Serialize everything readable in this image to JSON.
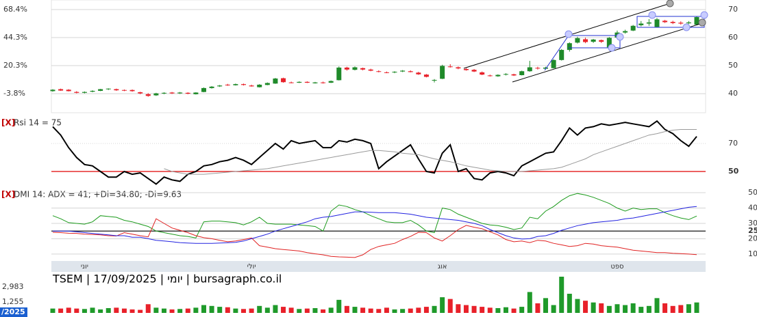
{
  "chart_data": [
    {
      "type": "candlestick",
      "categories": [
        null,
        null,
        null,
        null,
        "יוני",
        null,
        null,
        null,
        null,
        null,
        null,
        null,
        null,
        null,
        null,
        null,
        null,
        null,
        null,
        null,
        null,
        null,
        null,
        null,
        null,
        "יולי",
        null,
        null,
        null,
        null,
        null,
        null,
        null,
        null,
        null,
        null,
        null,
        null,
        null,
        null,
        null,
        null,
        null,
        null,
        null,
        null,
        null,
        null,
        null,
        "אוג",
        null,
        null,
        null,
        null,
        null,
        null,
        null,
        null,
        null,
        null,
        null,
        null,
        null,
        null,
        null,
        null,
        null,
        null,
        null,
        null,
        null,
        "ספט",
        null,
        null,
        null,
        null,
        null,
        null,
        null,
        null,
        null,
        null
      ],
      "candles": [
        [
          40.9,
          41.6,
          40.7,
          41.4
        ],
        [
          41.6,
          41.8,
          41.0,
          41.1
        ],
        [
          41.4,
          41.6,
          40.8,
          40.9
        ],
        [
          40.6,
          40.9,
          40.1,
          40.3
        ],
        [
          40.3,
          40.8,
          40.1,
          40.6
        ],
        [
          40.7,
          41.2,
          40.5,
          41.0
        ],
        [
          41.0,
          41.7,
          40.9,
          41.6
        ],
        [
          41.6,
          41.9,
          41.3,
          41.8
        ],
        [
          41.6,
          41.8,
          41.0,
          41.2
        ],
        [
          41.3,
          41.5,
          40.9,
          41.1
        ],
        [
          41.3,
          41.5,
          40.7,
          40.9
        ],
        [
          40.5,
          40.7,
          39.8,
          40.1
        ],
        [
          39.8,
          40.2,
          38.9,
          39.2
        ],
        [
          39.4,
          40.3,
          39.2,
          40.1
        ],
        [
          40.1,
          40.5,
          39.8,
          40.3
        ],
        [
          40.4,
          40.6,
          39.9,
          40.1
        ],
        [
          40.1,
          40.6,
          39.9,
          40.4
        ],
        [
          40.3,
          40.5,
          39.8,
          40.0
        ],
        [
          39.8,
          40.5,
          39.7,
          40.4
        ],
        [
          40.6,
          42.2,
          40.5,
          42.0
        ],
        [
          42.0,
          42.7,
          41.8,
          42.5
        ],
        [
          42.6,
          43.1,
          42.4,
          42.9
        ],
        [
          43.2,
          43.5,
          42.8,
          43.0
        ],
        [
          43.0,
          43.6,
          42.9,
          43.4
        ],
        [
          43.4,
          43.6,
          42.9,
          43.1
        ],
        [
          42.9,
          43.2,
          42.5,
          42.6
        ],
        [
          42.3,
          43.4,
          42.2,
          43.2
        ],
        [
          43.1,
          44.0,
          43.0,
          43.8
        ],
        [
          43.6,
          45.6,
          43.5,
          45.4
        ],
        [
          45.5,
          45.7,
          43.9,
          44.1
        ],
        [
          44.0,
          44.3,
          43.7,
          43.9
        ],
        [
          43.9,
          44.4,
          43.8,
          44.2
        ],
        [
          44.2,
          44.4,
          43.8,
          43.9
        ],
        [
          43.7,
          44.2,
          43.6,
          44.0
        ],
        [
          44.0,
          44.3,
          43.6,
          43.8
        ],
        [
          43.9,
          44.7,
          43.8,
          44.5
        ],
        [
          44.8,
          49.7,
          44.7,
          49.3
        ],
        [
          49.3,
          49.6,
          48.2,
          48.6
        ],
        [
          48.5,
          49.7,
          48.3,
          49.4
        ],
        [
          49.1,
          49.3,
          48.3,
          48.6
        ],
        [
          48.6,
          48.9,
          48.0,
          48.2
        ],
        [
          48.0,
          48.3,
          47.6,
          47.8
        ],
        [
          47.6,
          47.9,
          47.3,
          47.5
        ],
        [
          47.7,
          48.0,
          47.3,
          47.8
        ],
        [
          47.9,
          48.4,
          47.7,
          48.2
        ],
        [
          48.0,
          48.3,
          47.6,
          47.7
        ],
        [
          47.5,
          47.8,
          46.7,
          46.9
        ],
        [
          46.8,
          47.0,
          45.8,
          46.0
        ],
        [
          44.8,
          45.2,
          44.0,
          44.9
        ],
        [
          45.3,
          50.3,
          45.2,
          49.9
        ],
        [
          49.7,
          50.5,
          49.3,
          49.5
        ],
        [
          49.4,
          49.7,
          48.7,
          49.0
        ],
        [
          48.8,
          49.1,
          48.2,
          48.4
        ],
        [
          48.5,
          48.8,
          47.7,
          47.9
        ],
        [
          47.6,
          47.9,
          46.6,
          46.8
        ],
        [
          46.5,
          46.8,
          46.1,
          46.3
        ],
        [
          46.2,
          46.9,
          46.0,
          46.7
        ],
        [
          46.8,
          47.3,
          46.5,
          47.0
        ],
        [
          46.9,
          47.1,
          46.3,
          46.5
        ],
        [
          46.6,
          48.2,
          46.5,
          48.0
        ],
        [
          48.0,
          51.7,
          47.8,
          49.4
        ],
        [
          49.2,
          49.6,
          48.6,
          49.0
        ],
        [
          48.9,
          49.6,
          48.6,
          49.3
        ],
        [
          49.1,
          52.3,
          49.0,
          52.0
        ],
        [
          52.0,
          55.9,
          51.8,
          55.6
        ],
        [
          55.6,
          58.3,
          55.0,
          58.0
        ],
        [
          58.2,
          60.3,
          57.9,
          59.8
        ],
        [
          59.4,
          60.0,
          58.0,
          58.4
        ],
        [
          58.5,
          59.5,
          58.1,
          59.3
        ],
        [
          59.1,
          59.3,
          58.1,
          58.5
        ],
        [
          56.5,
          60.2,
          56.3,
          59.9
        ],
        [
          60.0,
          62.5,
          59.8,
          61.8
        ],
        [
          61.8,
          62.8,
          61.4,
          62.3
        ],
        [
          62.5,
          64.5,
          62.3,
          64.2
        ],
        [
          64.4,
          65.9,
          64.0,
          65.0
        ],
        [
          65.0,
          66.6,
          64.2,
          65.4
        ],
        [
          63.8,
          67.0,
          63.6,
          66.5
        ],
        [
          66.0,
          66.3,
          65.2,
          65.5
        ],
        [
          65.6,
          66.0,
          64.8,
          65.2
        ],
        [
          65.3,
          65.8,
          64.6,
          65.0
        ],
        [
          65.1,
          65.9,
          64.8,
          65.4
        ],
        [
          64.6,
          67.6,
          64.4,
          67.3
        ]
      ],
      "up_color": "#1f8a2a",
      "down_color": "#e8212a",
      "ylim": [
        33.2,
        73.4
      ],
      "yticks": [
        70,
        60,
        50,
        40
      ],
      "y2lim": [
        -20.24,
        76.62
      ],
      "y2ticks": [
        {
          "value": 68.4,
          "label": "68.4%"
        },
        {
          "value": 44.3,
          "label": "44.3%"
        },
        {
          "value": 20.3,
          "label": "20.3%"
        },
        {
          "value": -3.8,
          "label": "-3.8%"
        }
      ],
      "grid": true
    },
    {
      "type": "line",
      "close_button": "[X]",
      "title": "Rsi 14 = 75",
      "ylim": [
        38.3,
        89.5
      ],
      "yticks": [
        70,
        50
      ],
      "grid": true,
      "grid_style": "dotted",
      "level_line": {
        "value": 50,
        "color": "#e00000"
      },
      "series": [
        {
          "color": "#000000",
          "width": 2,
          "values": [
            82,
            76,
            67,
            60,
            55,
            54,
            50,
            46,
            46,
            50,
            48,
            49,
            45,
            41,
            46,
            44,
            43,
            48,
            50,
            54,
            55,
            57,
            58,
            60,
            58,
            55,
            60,
            65,
            70,
            66,
            72,
            70,
            71,
            72,
            67,
            67,
            72,
            71,
            73,
            72,
            70,
            52,
            57,
            61,
            65,
            69,
            59,
            50,
            49,
            63,
            69,
            50,
            52,
            45,
            44,
            49,
            50,
            49,
            47,
            54,
            57,
            60,
            63,
            64,
            72,
            81,
            76,
            81,
            82,
            84,
            83,
            84,
            85,
            84,
            83,
            82,
            86,
            80,
            77,
            72,
            68,
            75
          ]
        },
        {
          "color": "#999999",
          "width": 1,
          "values": [
            null,
            null,
            null,
            null,
            null,
            null,
            null,
            null,
            null,
            null,
            null,
            null,
            null,
            null,
            52,
            50,
            49,
            48,
            48,
            48,
            48.5,
            49,
            49.5,
            50,
            50.5,
            51,
            51.5,
            52,
            53,
            54,
            55,
            56,
            57,
            58,
            59,
            60,
            61,
            62,
            63,
            64,
            65,
            65,
            64.5,
            64,
            63,
            62.5,
            62,
            60.5,
            59,
            58,
            57,
            55.5,
            54,
            53,
            52,
            51,
            50.5,
            50,
            50,
            50,
            50.5,
            51,
            51.5,
            52,
            53,
            55,
            57,
            59,
            62,
            64,
            66,
            68,
            70,
            72,
            74,
            76,
            77,
            78.5,
            79.5,
            80,
            80,
            80
          ]
        }
      ]
    },
    {
      "type": "line",
      "close_button": "[X]",
      "title": "DMI 14: ADX = 41; +Di=34.80; -Di=9.63",
      "ylim": [
        6.4,
        51.8
      ],
      "yticks": [
        50,
        40,
        30,
        25,
        20,
        10
      ],
      "grid": true,
      "grid_style": "solid",
      "level_line": {
        "value": 25,
        "color": "#000000"
      },
      "series": [
        {
          "color": "#1a9a1a",
          "width": 1,
          "values": [
            35,
            33,
            30.5,
            30,
            29.5,
            31,
            35,
            34.5,
            34,
            32,
            31,
            29.5,
            28,
            25,
            24,
            23,
            22,
            21.5,
            20.5,
            31,
            31.5,
            31.5,
            31,
            30.5,
            29,
            31,
            34,
            30,
            29.5,
            29.5,
            29.5,
            29,
            28.5,
            28,
            25,
            38,
            42,
            41,
            39,
            37.5,
            35,
            33,
            31,
            30.5,
            30.5,
            32,
            29,
            25,
            24,
            40,
            39,
            36,
            34,
            32,
            30,
            29,
            28.5,
            27.5,
            26,
            27,
            34,
            33,
            38,
            41,
            45,
            48,
            49.5,
            48.5,
            47,
            45,
            43,
            40,
            38,
            40,
            39,
            39.5,
            39.5,
            37,
            35,
            33.5,
            32.5,
            34.8
          ]
        },
        {
          "color": "#e02020",
          "width": 1,
          "values": [
            24.2,
            24,
            23.6,
            23.5,
            23,
            22.8,
            22.5,
            22,
            21.8,
            24,
            23,
            22,
            21.2,
            33,
            30,
            27,
            25.5,
            24,
            22,
            20.7,
            20,
            19,
            18,
            18.5,
            19.5,
            20.5,
            15.5,
            14.5,
            13.5,
            13,
            12.5,
            12,
            11,
            10.2,
            9.5,
            8.5,
            8.2,
            8,
            7.8,
            9.5,
            13,
            15,
            16,
            17,
            19.5,
            21.5,
            24.2,
            24,
            20.5,
            18.5,
            22,
            26,
            28.7,
            27.5,
            26.5,
            24.5,
            22.5,
            19.5,
            18,
            18.5,
            17.5,
            19,
            18.5,
            17,
            16,
            15,
            15.5,
            17,
            16.5,
            15.5,
            15,
            14.5,
            13.5,
            12.5,
            12,
            11.5,
            11,
            11,
            10.5,
            10.3,
            10,
            9.63
          ]
        },
        {
          "color": "#2020e0",
          "width": 1,
          "values": [
            25,
            25,
            25,
            24.5,
            24,
            23.5,
            23,
            22.5,
            22,
            22,
            21,
            21,
            20,
            19,
            18.5,
            18,
            17.5,
            17.2,
            17,
            17,
            17,
            17.2,
            17.4,
            17.6,
            18.5,
            20,
            21.5,
            23,
            25,
            26.5,
            28,
            29.5,
            31,
            33,
            34,
            34.5,
            35.5,
            36.5,
            37.5,
            37.5,
            37.3,
            37,
            37,
            37,
            36.5,
            36,
            35,
            34,
            33.5,
            33,
            32.5,
            32,
            31,
            30,
            28.5,
            26,
            24,
            22,
            20.5,
            19.8,
            20,
            21.5,
            22,
            23.5,
            25.5,
            27,
            28.5,
            29.5,
            30.5,
            31,
            31.5,
            32,
            33,
            33.5,
            34.5,
            35.5,
            36.5,
            37.5,
            38.5,
            39.5,
            40.5,
            41
          ]
        }
      ]
    },
    {
      "type": "bar",
      "title": "TSEM | 17/09/2025 | יומי | bursagraph.co.il",
      "date_label": "/2025",
      "values": [
        500,
        500,
        600,
        500,
        450,
        600,
        400,
        550,
        600,
        500,
        400,
        350,
        1000,
        600,
        500,
        400,
        450,
        500,
        600,
        900,
        800,
        700,
        650,
        500,
        450,
        500,
        800,
        600,
        900,
        700,
        600,
        450,
        500,
        550,
        400,
        600,
        1500,
        800,
        700,
        600,
        500,
        450,
        600,
        400,
        450,
        500,
        600,
        700,
        800,
        1800,
        1600,
        1000,
        900,
        800,
        700,
        600,
        550,
        650,
        500,
        700,
        2400,
        1100,
        1700,
        900,
        4160,
        2200,
        1600,
        1400,
        1200,
        1100,
        800,
        1000,
        900,
        1100,
        700,
        800,
        1700,
        1100,
        800,
        900,
        1000,
        1200
      ],
      "up_color": "#1f9a2a",
      "down_color": "#e8212a",
      "ylim": [
        -314,
        4553
      ],
      "yticks": [
        {
          "value": 2983,
          "label": "2,983"
        },
        {
          "value": 1255,
          "label": "1,255"
        }
      ],
      "grid": false
    }
  ]
}
